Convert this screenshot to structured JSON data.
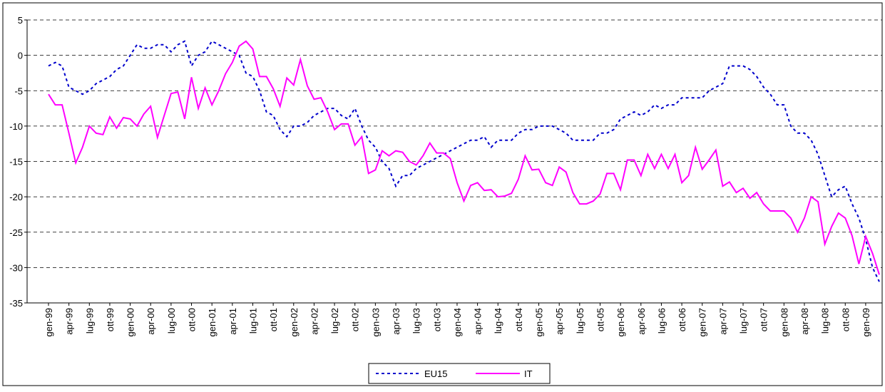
{
  "chart_data": {
    "type": "line",
    "categories": [
      "gen-99",
      null,
      null,
      "apr-99",
      null,
      null,
      "lug-99",
      null,
      null,
      "ott-99",
      null,
      null,
      "gen-00",
      null,
      null,
      "apr-00",
      null,
      null,
      "lug-00",
      null,
      null,
      "ott-00",
      null,
      null,
      "gen-01",
      null,
      null,
      "apr-01",
      null,
      null,
      "lug-01",
      null,
      null,
      "ott-01",
      null,
      null,
      "gen-02",
      null,
      null,
      "apr-02",
      null,
      null,
      "lug-02",
      null,
      null,
      "ott-02",
      null,
      null,
      "gen-03",
      null,
      null,
      "apr-03",
      null,
      null,
      "lug-03",
      null,
      null,
      "ott-03",
      null,
      null,
      "gen-04",
      null,
      null,
      "apr-04",
      null,
      null,
      "lug-04",
      null,
      null,
      "ott-04",
      null,
      null,
      "gen-05",
      null,
      null,
      "apr-05",
      null,
      null,
      "lug-05",
      null,
      null,
      "ott-05",
      null,
      null,
      "gen-06",
      null,
      null,
      "apr-06",
      null,
      null,
      "lug-06",
      null,
      null,
      "ott-06",
      null,
      null,
      "gen-07",
      null,
      null,
      "apr-07",
      null,
      null,
      "lug-07",
      null,
      null,
      "ott-07",
      null,
      null,
      "gen-08",
      null,
      null,
      "apr-08",
      null,
      null,
      "lug-08",
      null,
      null,
      "ott-08",
      null,
      null,
      "gen-09",
      null,
      null
    ],
    "series": [
      {
        "name": "EU15",
        "color": "#0000cc",
        "dashed": true,
        "values": [
          -1.5,
          -1,
          -1.5,
          -4.5,
          -5,
          -5.5,
          -5,
          -4,
          -3.5,
          -3,
          -2,
          -1.5,
          0,
          1.5,
          1,
          1,
          1.5,
          1.5,
          0.5,
          1.5,
          2,
          -1.5,
          0,
          0.5,
          2,
          1.5,
          1,
          0.5,
          0,
          -2.5,
          -3,
          -5,
          -8,
          -8.5,
          -10.5,
          -11.5,
          -10,
          -10,
          -9.5,
          -8.5,
          -8,
          -7.5,
          -7.5,
          -8.5,
          -9,
          -7.5,
          -10,
          -12,
          -13,
          -15,
          -16,
          -18.5,
          -17,
          -17,
          -16,
          -15.5,
          -15,
          -14.5,
          -14,
          -13.5,
          -13,
          -12.5,
          -12,
          -12,
          -11.5,
          -13,
          -12,
          -12,
          -12,
          -11,
          -10.5,
          -10.5,
          -10,
          -10,
          -10,
          -10.5,
          -11,
          -12,
          -12,
          -12,
          -12,
          -11,
          -11,
          -10.5,
          -9,
          -8.5,
          -8,
          -8.5,
          -8,
          -7,
          -7.5,
          -7,
          -7,
          -6,
          -6,
          -6,
          -6,
          -5,
          -4.5,
          -4,
          -1.5,
          -1.5,
          -1.5,
          -2,
          -3,
          -4.5,
          -5.5,
          -7,
          -7,
          -10,
          -11,
          -11,
          -12,
          -14,
          -17,
          -20,
          -19,
          -18.5,
          -21,
          -23,
          -26,
          -30,
          -32
        ]
      },
      {
        "name": "IT",
        "color": "#ff00ff",
        "dashed": false,
        "values": [
          -5.5,
          -7,
          -7,
          -11,
          -15.2,
          -13,
          -10,
          -11,
          -11.2,
          -8.7,
          -10.3,
          -8.8,
          -9,
          -10,
          -8.3,
          -7.2,
          -11.6,
          -8.5,
          -5.4,
          -5.2,
          -9,
          -3.1,
          -7.5,
          -4.6,
          -7,
          -5,
          -2.6,
          -1,
          1.3,
          2,
          0.9,
          -3,
          -3,
          -4.7,
          -7.2,
          -3.2,
          -4.2,
          -0.6,
          -4.3,
          -6.2,
          -6,
          -8,
          -10.5,
          -9.7,
          -9.7,
          -12.7,
          -11.5,
          -16.7,
          -16.2,
          -13.5,
          -14.2,
          -13.5,
          -13.7,
          -15,
          -15.5,
          -14.2,
          -12.4,
          -13.8,
          -13.8,
          -14.6,
          -18,
          -20.6,
          -18.4,
          -18,
          -19.1,
          -19,
          -20,
          -19.9,
          -19.5,
          -17.5,
          -14.2,
          -16.2,
          -16.1,
          -18,
          -18.4,
          -15.8,
          -16.5,
          -19.4,
          -21,
          -21,
          -20.6,
          -19.6,
          -16.7,
          -16.7,
          -19,
          -14.8,
          -14.8,
          -17,
          -14,
          -16,
          -14,
          -16,
          -14,
          -18,
          -17,
          -13,
          -16.1,
          -14.8,
          -13.4,
          -18.5,
          -17.9,
          -19.4,
          -18.8,
          -20.2,
          -19.4,
          -21,
          -22,
          -22,
          -22,
          -23,
          -25,
          -23,
          -20,
          -20.7,
          -26.7,
          -24.2,
          -22.3,
          -23,
          -25.5,
          -29.5,
          -25.6,
          -28,
          -31
        ]
      }
    ],
    "ylim": [
      -35,
      5
    ],
    "yticks": [
      -35,
      -30,
      -25,
      -20,
      -15,
      -10,
      -5,
      0,
      5
    ],
    "grid": true
  }
}
